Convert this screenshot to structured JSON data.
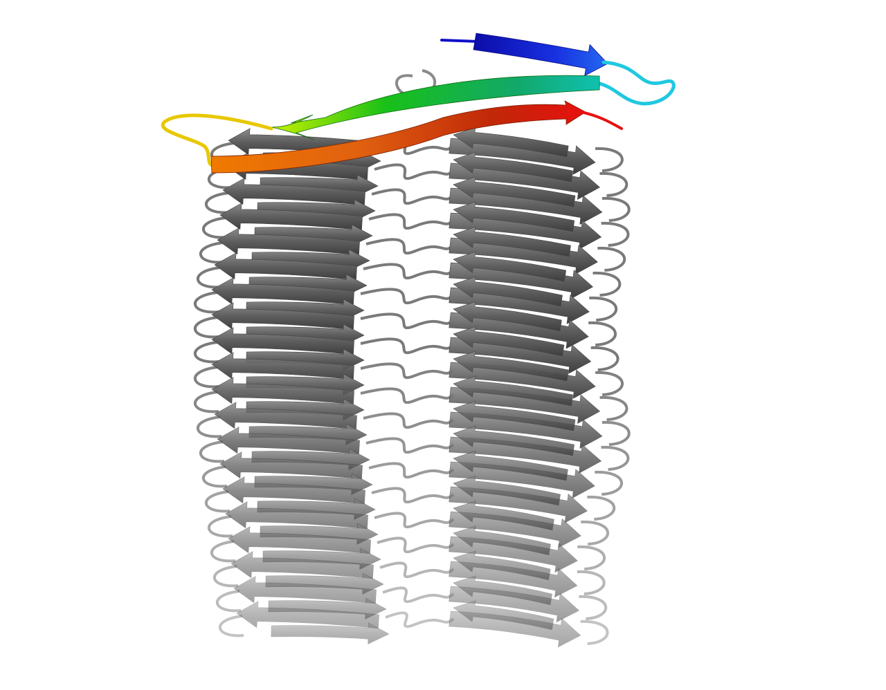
{
  "image": {
    "subject": "protein-cartoon-beta-solenoid",
    "background_color": "#ffffff",
    "stack_strand_color": "#6e6e6e",
    "stack_loop_color": "#7a7a7a",
    "highlight_chain_colors": {
      "n_terminus": "#1010c8",
      "blue_strand": "#1a30e0",
      "cyan_loop": "#20c8e0",
      "teal_green": "#12a86a",
      "green": "#18c018",
      "yellow_green": "#c8f000",
      "yellow_loop": "#e8c800",
      "orange": "#f07000",
      "red": "#e81010"
    },
    "stack_layers": 20
  }
}
